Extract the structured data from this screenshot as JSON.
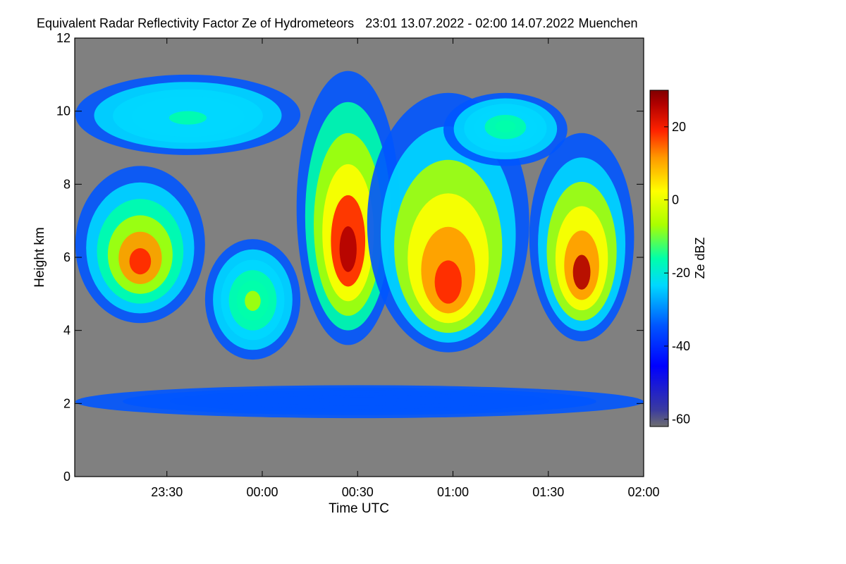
{
  "chart_data": {
    "type": "heatmap",
    "title": "Equivalent Radar Reflectivity Factor Ze of Hydrometeors",
    "time_range": "23:01 13.07.2022 - 02:00 14.07.2022",
    "location": "Muenchen",
    "xlabel": "Time UTC",
    "ylabel": "Height km",
    "xlim_hours": [
      23.0167,
      26.0
    ],
    "ylim": [
      0,
      12
    ],
    "x_ticks": [
      {
        "value": 23.5,
        "label": "23:30"
      },
      {
        "value": 24.0,
        "label": "00:00"
      },
      {
        "value": 24.5,
        "label": "00:30"
      },
      {
        "value": 25.0,
        "label": "01:00"
      },
      {
        "value": 25.5,
        "label": "01:30"
      },
      {
        "value": 26.0,
        "label": "02:00"
      }
    ],
    "y_ticks": [
      0,
      2,
      4,
      6,
      8,
      10,
      12
    ],
    "colorbar": {
      "label": "Ze dBZ",
      "range": [
        -62,
        30
      ],
      "ticks": [
        20,
        0,
        -20,
        -40,
        -60
      ],
      "no_data_color": "#808080"
    },
    "reflectivity_cells": [
      {
        "name": "early-layer",
        "t_start": 23.02,
        "t_end": 23.7,
        "base_km": 4.2,
        "top_km": 8.5,
        "peak_height_km": 5.8,
        "peak_dbz": 12
      },
      {
        "name": "high-cirrus",
        "t_start": 23.02,
        "t_end": 24.2,
        "base_km": 8.8,
        "top_km": 11.0,
        "peak_height_km": 9.8,
        "peak_dbz": -22
      },
      {
        "name": "trailing-fall",
        "t_start": 23.7,
        "t_end": 24.2,
        "base_km": 3.2,
        "top_km": 6.5,
        "peak_height_km": 4.8,
        "peak_dbz": -12
      },
      {
        "name": "main-core",
        "t_start": 24.18,
        "t_end": 24.72,
        "base_km": 3.6,
        "top_km": 11.1,
        "peak_height_km": 6.0,
        "peak_dbz": 25
      },
      {
        "name": "middle-cell",
        "t_start": 24.55,
        "t_end": 25.4,
        "base_km": 3.4,
        "top_km": 10.5,
        "peak_height_km": 5.0,
        "peak_dbz": 15
      },
      {
        "name": "late-cirrus",
        "t_start": 24.95,
        "t_end": 25.6,
        "base_km": 8.5,
        "top_km": 10.5,
        "peak_height_km": 9.6,
        "peak_dbz": -20
      },
      {
        "name": "late-core",
        "t_start": 25.4,
        "t_end": 25.95,
        "base_km": 3.7,
        "top_km": 9.4,
        "peak_height_km": 5.4,
        "peak_dbz": 22
      },
      {
        "name": "ground-clutter",
        "t_start": 23.02,
        "t_end": 26.0,
        "base_km": 1.6,
        "top_km": 2.5,
        "peak_height_km": 2.1,
        "peak_dbz": -42
      }
    ]
  }
}
